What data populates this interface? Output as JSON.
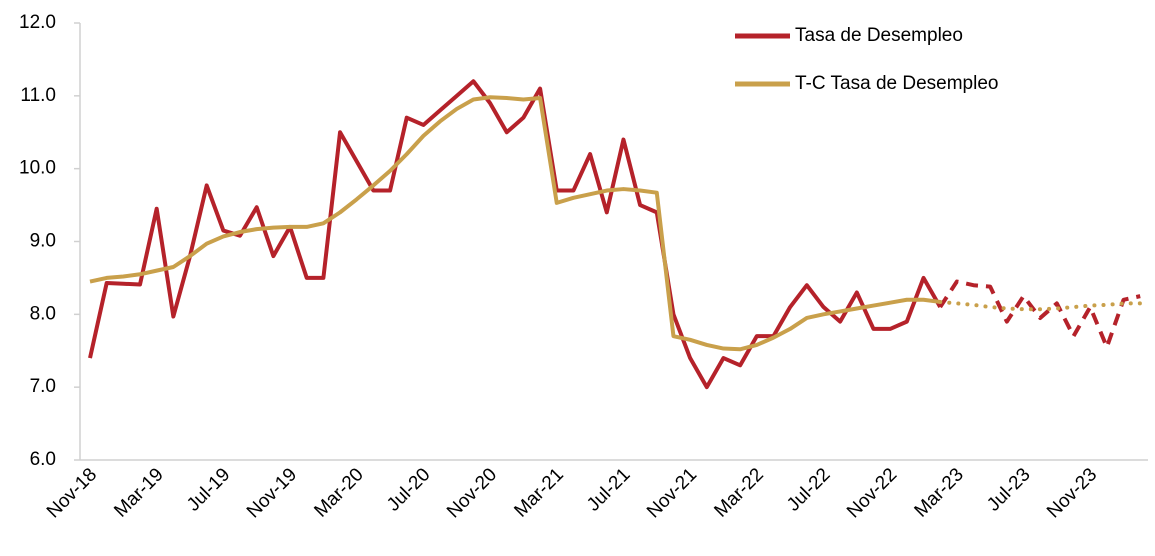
{
  "chart_data": {
    "type": "line",
    "categories": [
      "Nov-18",
      null,
      null,
      null,
      "Mar-19",
      null,
      null,
      null,
      "Jul-19",
      null,
      null,
      null,
      "Nov-19",
      null,
      null,
      null,
      "Mar-20",
      null,
      null,
      null,
      "Jul-20",
      null,
      null,
      null,
      "Nov-20",
      null,
      null,
      null,
      "Mar-21",
      null,
      null,
      null,
      "Jul-21",
      null,
      null,
      null,
      "Nov-21",
      null,
      null,
      null,
      "Mar-22",
      null,
      null,
      null,
      "Jul-22",
      null,
      null,
      null,
      "Nov-22",
      null,
      null,
      null,
      "Mar-23",
      null,
      null,
      null,
      "Jul-23",
      null,
      null,
      null,
      "Nov-23",
      null,
      null,
      null
    ],
    "series": [
      {
        "name": "Tasa de Desempleo",
        "color": "#b5222a",
        "forecast_style": "dashed",
        "values": [
          7.4,
          8.43,
          8.42,
          8.41,
          9.45,
          7.97,
          8.8,
          9.77,
          9.15,
          9.08,
          9.47,
          8.8,
          9.2,
          8.5,
          8.5,
          10.5,
          10.1,
          9.7,
          9.7,
          10.7,
          10.6,
          10.8,
          11.0,
          11.2,
          10.9,
          10.5,
          10.7,
          11.1,
          9.7,
          9.7,
          10.2,
          9.4,
          10.4,
          9.5,
          9.4,
          8.0,
          7.4,
          7.0,
          7.4,
          7.3,
          7.7,
          7.7,
          8.1,
          8.4,
          8.1,
          7.9,
          8.3,
          7.8,
          7.8,
          7.9,
          8.5,
          8.1,
          null,
          null,
          null,
          null,
          null,
          null,
          null,
          null,
          null,
          null,
          null,
          null
        ],
        "forecast": [
          null,
          null,
          null,
          null,
          null,
          null,
          null,
          null,
          null,
          null,
          null,
          null,
          null,
          null,
          null,
          null,
          null,
          null,
          null,
          null,
          null,
          null,
          null,
          null,
          null,
          null,
          null,
          null,
          null,
          null,
          null,
          null,
          null,
          null,
          null,
          null,
          null,
          null,
          null,
          null,
          null,
          null,
          null,
          null,
          null,
          null,
          null,
          null,
          null,
          null,
          null,
          8.1,
          8.45,
          8.4,
          8.38,
          7.9,
          8.25,
          7.95,
          8.15,
          7.7,
          8.1,
          7.55,
          8.2,
          8.25
        ]
      },
      {
        "name": "T-C Tasa de Desempleo",
        "color": "#c9a04b",
        "forecast_style": "dotted",
        "values": [
          8.45,
          8.5,
          8.52,
          8.55,
          8.6,
          8.65,
          8.8,
          8.97,
          9.07,
          9.13,
          9.17,
          9.19,
          9.2,
          9.2,
          9.25,
          9.4,
          9.58,
          9.77,
          9.97,
          10.2,
          10.45,
          10.65,
          10.82,
          10.95,
          10.98,
          10.97,
          10.95,
          10.97,
          9.53,
          9.6,
          9.65,
          9.7,
          9.72,
          9.7,
          9.67,
          7.7,
          7.65,
          7.58,
          7.53,
          7.52,
          7.58,
          7.68,
          7.8,
          7.95,
          8.0,
          8.04,
          8.08,
          8.12,
          8.16,
          8.2,
          8.2,
          8.17,
          null,
          null,
          null,
          null,
          null,
          null,
          null,
          null,
          null,
          null,
          null,
          null
        ],
        "forecast": [
          null,
          null,
          null,
          null,
          null,
          null,
          null,
          null,
          null,
          null,
          null,
          null,
          null,
          null,
          null,
          null,
          null,
          null,
          null,
          null,
          null,
          null,
          null,
          null,
          null,
          null,
          null,
          null,
          null,
          null,
          null,
          null,
          null,
          null,
          null,
          null,
          null,
          null,
          null,
          null,
          null,
          null,
          null,
          null,
          null,
          null,
          null,
          null,
          null,
          null,
          null,
          8.17,
          8.15,
          8.13,
          8.1,
          8.08,
          8.07,
          8.07,
          8.08,
          8.1,
          8.12,
          8.13,
          8.15,
          8.15
        ]
      }
    ],
    "ylim": [
      6,
      12
    ],
    "yticks": [
      {
        "value": 6,
        "label": "6.0"
      },
      {
        "value": 7,
        "label": "7.0"
      },
      {
        "value": 8,
        "label": "8.0"
      },
      {
        "value": 9,
        "label": "9.0"
      },
      {
        "value": 10,
        "label": "10.0"
      },
      {
        "value": 11,
        "label": "11.0"
      },
      {
        "value": 12,
        "label": "12.0"
      }
    ],
    "legend": "top-right"
  }
}
